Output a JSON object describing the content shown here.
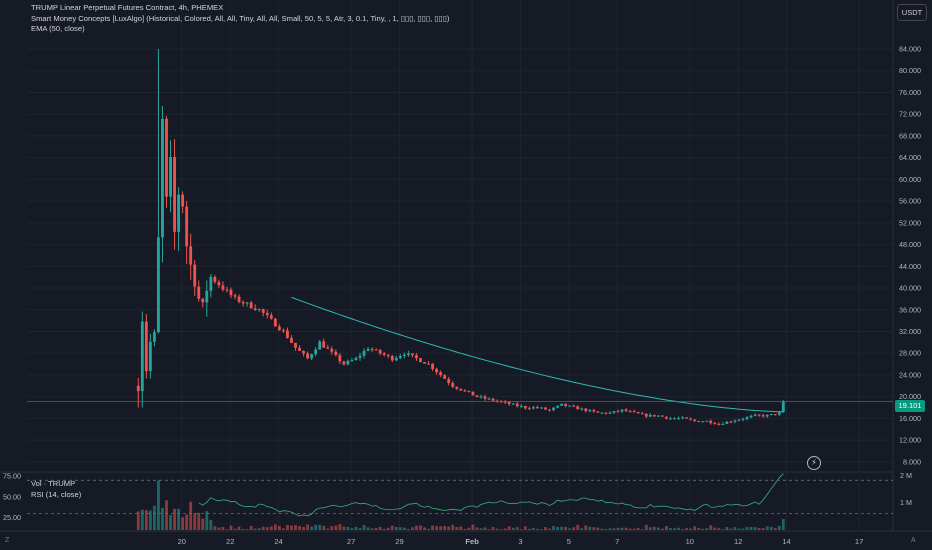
{
  "legend": {
    "symbol_line": "TRUMP Linear Perpetual Futures Contract, 4h, PHEMEX",
    "smc_line": "Smart Money Concepts [LuxAlgo] (Historical, Colored, All, All, Tiny, All, All, Small, 50, 5, 5, Atr, 3, 0.1, Tiny, , 1, ▯▯▯, ▯▯▯, ▯▯▯)",
    "ema_line": "EMA (50, close)"
  },
  "currency_button": "USDT",
  "last_price": "19.101",
  "bolt_icon": "⚡",
  "corner_labels": {
    "left": "Z",
    "right": "A"
  },
  "pane_legends": {
    "volume": "Vol · TRUMP",
    "rsi": "RSI (14, close)"
  },
  "colors": {
    "up": "#26a69a",
    "down": "#ef5350",
    "ema": "#2dbbb3",
    "rsi": "#37b07a",
    "background": "#161a25",
    "grid": "#1f2430",
    "axis_text": "#b2b5be",
    "price_line": "#089981"
  },
  "chart_data": {
    "type": "candlestick",
    "timeframe": "4h",
    "price_axis_ticks": [
      8,
      12,
      16,
      20,
      24,
      28,
      32,
      36,
      40,
      44,
      48,
      52,
      56,
      60,
      64,
      68,
      72,
      76,
      80,
      84
    ],
    "price_axis_labels": [
      "8.000",
      "12.000",
      "16.000",
      "20.000",
      "24.000",
      "28.000",
      "32.000",
      "36.000",
      "40.000",
      "44.000",
      "48.000",
      "52.000",
      "56.000",
      "60.000",
      "64.000",
      "68.000",
      "72.000",
      "76.000",
      "80.000",
      "84.000"
    ],
    "time_axis_labels": [
      "20",
      "22",
      "24",
      "27",
      "29",
      "Feb",
      "3",
      "5",
      "7",
      "10",
      "12",
      "14",
      "17"
    ],
    "time_axis_positions_days": [
      1.8,
      3.8,
      5.8,
      8.8,
      10.8,
      13.8,
      15.8,
      17.8,
      19.8,
      22.8,
      24.8,
      26.8,
      29.8
    ],
    "last_price_value": 19.101,
    "x_domain_days": [
      -4.6,
      31.2
    ],
    "y_domain": [
      6.5,
      87.5
    ],
    "anchors": [
      [
        0.0,
        22
      ],
      [
        0.17,
        35
      ],
      [
        0.33,
        25
      ],
      [
        0.5,
        30
      ],
      [
        0.67,
        31
      ],
      [
        0.83,
        48
      ],
      [
        1.0,
        70
      ],
      [
        1.17,
        55
      ],
      [
        1.33,
        62
      ],
      [
        1.5,
        50
      ],
      [
        1.67,
        58
      ],
      [
        1.83,
        56
      ],
      [
        2.0,
        48
      ],
      [
        2.17,
        44
      ],
      [
        2.33,
        42
      ],
      [
        2.5,
        38
      ],
      [
        2.67,
        36
      ],
      [
        2.83,
        40
      ],
      [
        3.0,
        42
      ],
      [
        3.5,
        40
      ],
      [
        4.0,
        38
      ],
      [
        4.5,
        37
      ],
      [
        5.0,
        36
      ],
      [
        5.5,
        34
      ],
      [
        6.0,
        32
      ],
      [
        6.5,
        29
      ],
      [
        7.0,
        27
      ],
      [
        7.5,
        30
      ],
      [
        8.0,
        28
      ],
      [
        8.5,
        26
      ],
      [
        9.0,
        27
      ],
      [
        9.5,
        29
      ],
      [
        10.0,
        28
      ],
      [
        10.5,
        27
      ],
      [
        11.0,
        28
      ],
      [
        11.5,
        27
      ],
      [
        12.0,
        26
      ],
      [
        12.5,
        24
      ],
      [
        13.0,
        22
      ],
      [
        13.5,
        21
      ],
      [
        14.0,
        20
      ],
      [
        14.5,
        19.5
      ],
      [
        15.0,
        19
      ],
      [
        15.5,
        18.5
      ],
      [
        16.0,
        18
      ],
      [
        16.5,
        18
      ],
      [
        17.0,
        17.5
      ],
      [
        17.5,
        18.5
      ],
      [
        18.0,
        18
      ],
      [
        18.5,
        17.5
      ],
      [
        19.0,
        17
      ],
      [
        19.5,
        17
      ],
      [
        20.0,
        17.5
      ],
      [
        20.5,
        17
      ],
      [
        21.0,
        16.5
      ],
      [
        21.5,
        16.5
      ],
      [
        22.0,
        16
      ],
      [
        22.5,
        16
      ],
      [
        23.0,
        15.5
      ],
      [
        23.5,
        15.5
      ],
      [
        24.0,
        15
      ],
      [
        24.5,
        15.5
      ],
      [
        25.0,
        16
      ],
      [
        25.5,
        16.5
      ],
      [
        26.0,
        16.5
      ],
      [
        26.5,
        17
      ],
      [
        26.8,
        19.1
      ]
    ],
    "ema": {
      "period": 50,
      "start_day": 6.2,
      "start_value": 38.5,
      "end_value": 17.2
    },
    "volume_pane": {
      "right_axis_labels": [
        "2 M",
        "1 M"
      ]
    },
    "rsi_pane": {
      "levels": [
        75,
        50,
        25
      ],
      "level_labels": [
        "75.00",
        "50.00",
        "25.00"
      ],
      "upper_band": 70,
      "lower_band": 30
    }
  }
}
